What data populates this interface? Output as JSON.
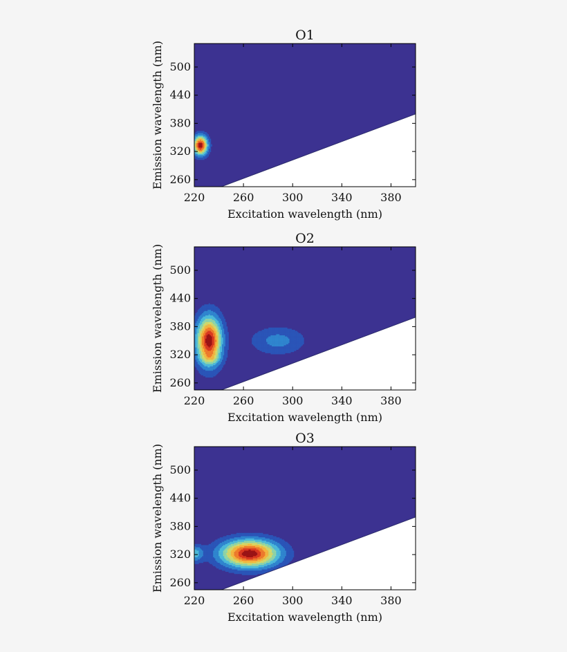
{
  "chart_data": [
    {
      "type": "contour",
      "title": "O1",
      "xlabel": "Excitation wavelength (nm)",
      "ylabel": "Emission wavelength (nm)",
      "xlim": [
        220,
        400
      ],
      "ylim": [
        245,
        550
      ],
      "xticks": [
        220,
        260,
        300,
        340,
        380
      ],
      "yticks": [
        260,
        320,
        380,
        440,
        500
      ],
      "background_color": "#3c3291",
      "masked_region": "emission below a line from (242, 245) to (400, 400)",
      "peaks": [
        {
          "ex": 225,
          "em": 333,
          "intensity": 1.0,
          "ex_width": 4,
          "em_width": 14
        }
      ]
    },
    {
      "type": "contour",
      "title": "O2",
      "xlabel": "Excitation wavelength (nm)",
      "ylabel": "Emission wavelength (nm)",
      "xlim": [
        220,
        400
      ],
      "ylim": [
        245,
        550
      ],
      "xticks": [
        220,
        260,
        300,
        340,
        380
      ],
      "yticks": [
        260,
        320,
        380,
        440,
        500
      ],
      "background_color": "#3c3291",
      "masked_region": "emission below a line from (242, 245) to (400, 400)",
      "peaks": [
        {
          "ex": 232,
          "em": 350,
          "intensity": 1.0,
          "ex_width": 7,
          "em_width": 35
        },
        {
          "ex": 288,
          "em": 350,
          "intensity": 0.22,
          "ex_width": 15,
          "em_width": 20
        },
        {
          "ex": 233,
          "em": 312,
          "intensity": 0.14,
          "ex_width": 6,
          "em_width": 8
        }
      ]
    },
    {
      "type": "contour",
      "title": "O3",
      "xlabel": "Excitation wavelength (nm)",
      "ylabel": "Emission wavelength (nm)",
      "xlim": [
        220,
        400
      ],
      "ylim": [
        245,
        550
      ],
      "xticks": [
        220,
        260,
        300,
        340,
        380
      ],
      "yticks": [
        260,
        320,
        380,
        440,
        500
      ],
      "background_color": "#3c3291",
      "masked_region": "emission below a line from (242, 245) to (400, 400)",
      "peaks": [
        {
          "ex": 265,
          "em": 322,
          "intensity": 1.0,
          "ex_width": 16,
          "em_width": 20
        },
        {
          "ex": 220,
          "em": 322,
          "intensity": 0.35,
          "ex_width": 5,
          "em_width": 12
        }
      ]
    }
  ]
}
